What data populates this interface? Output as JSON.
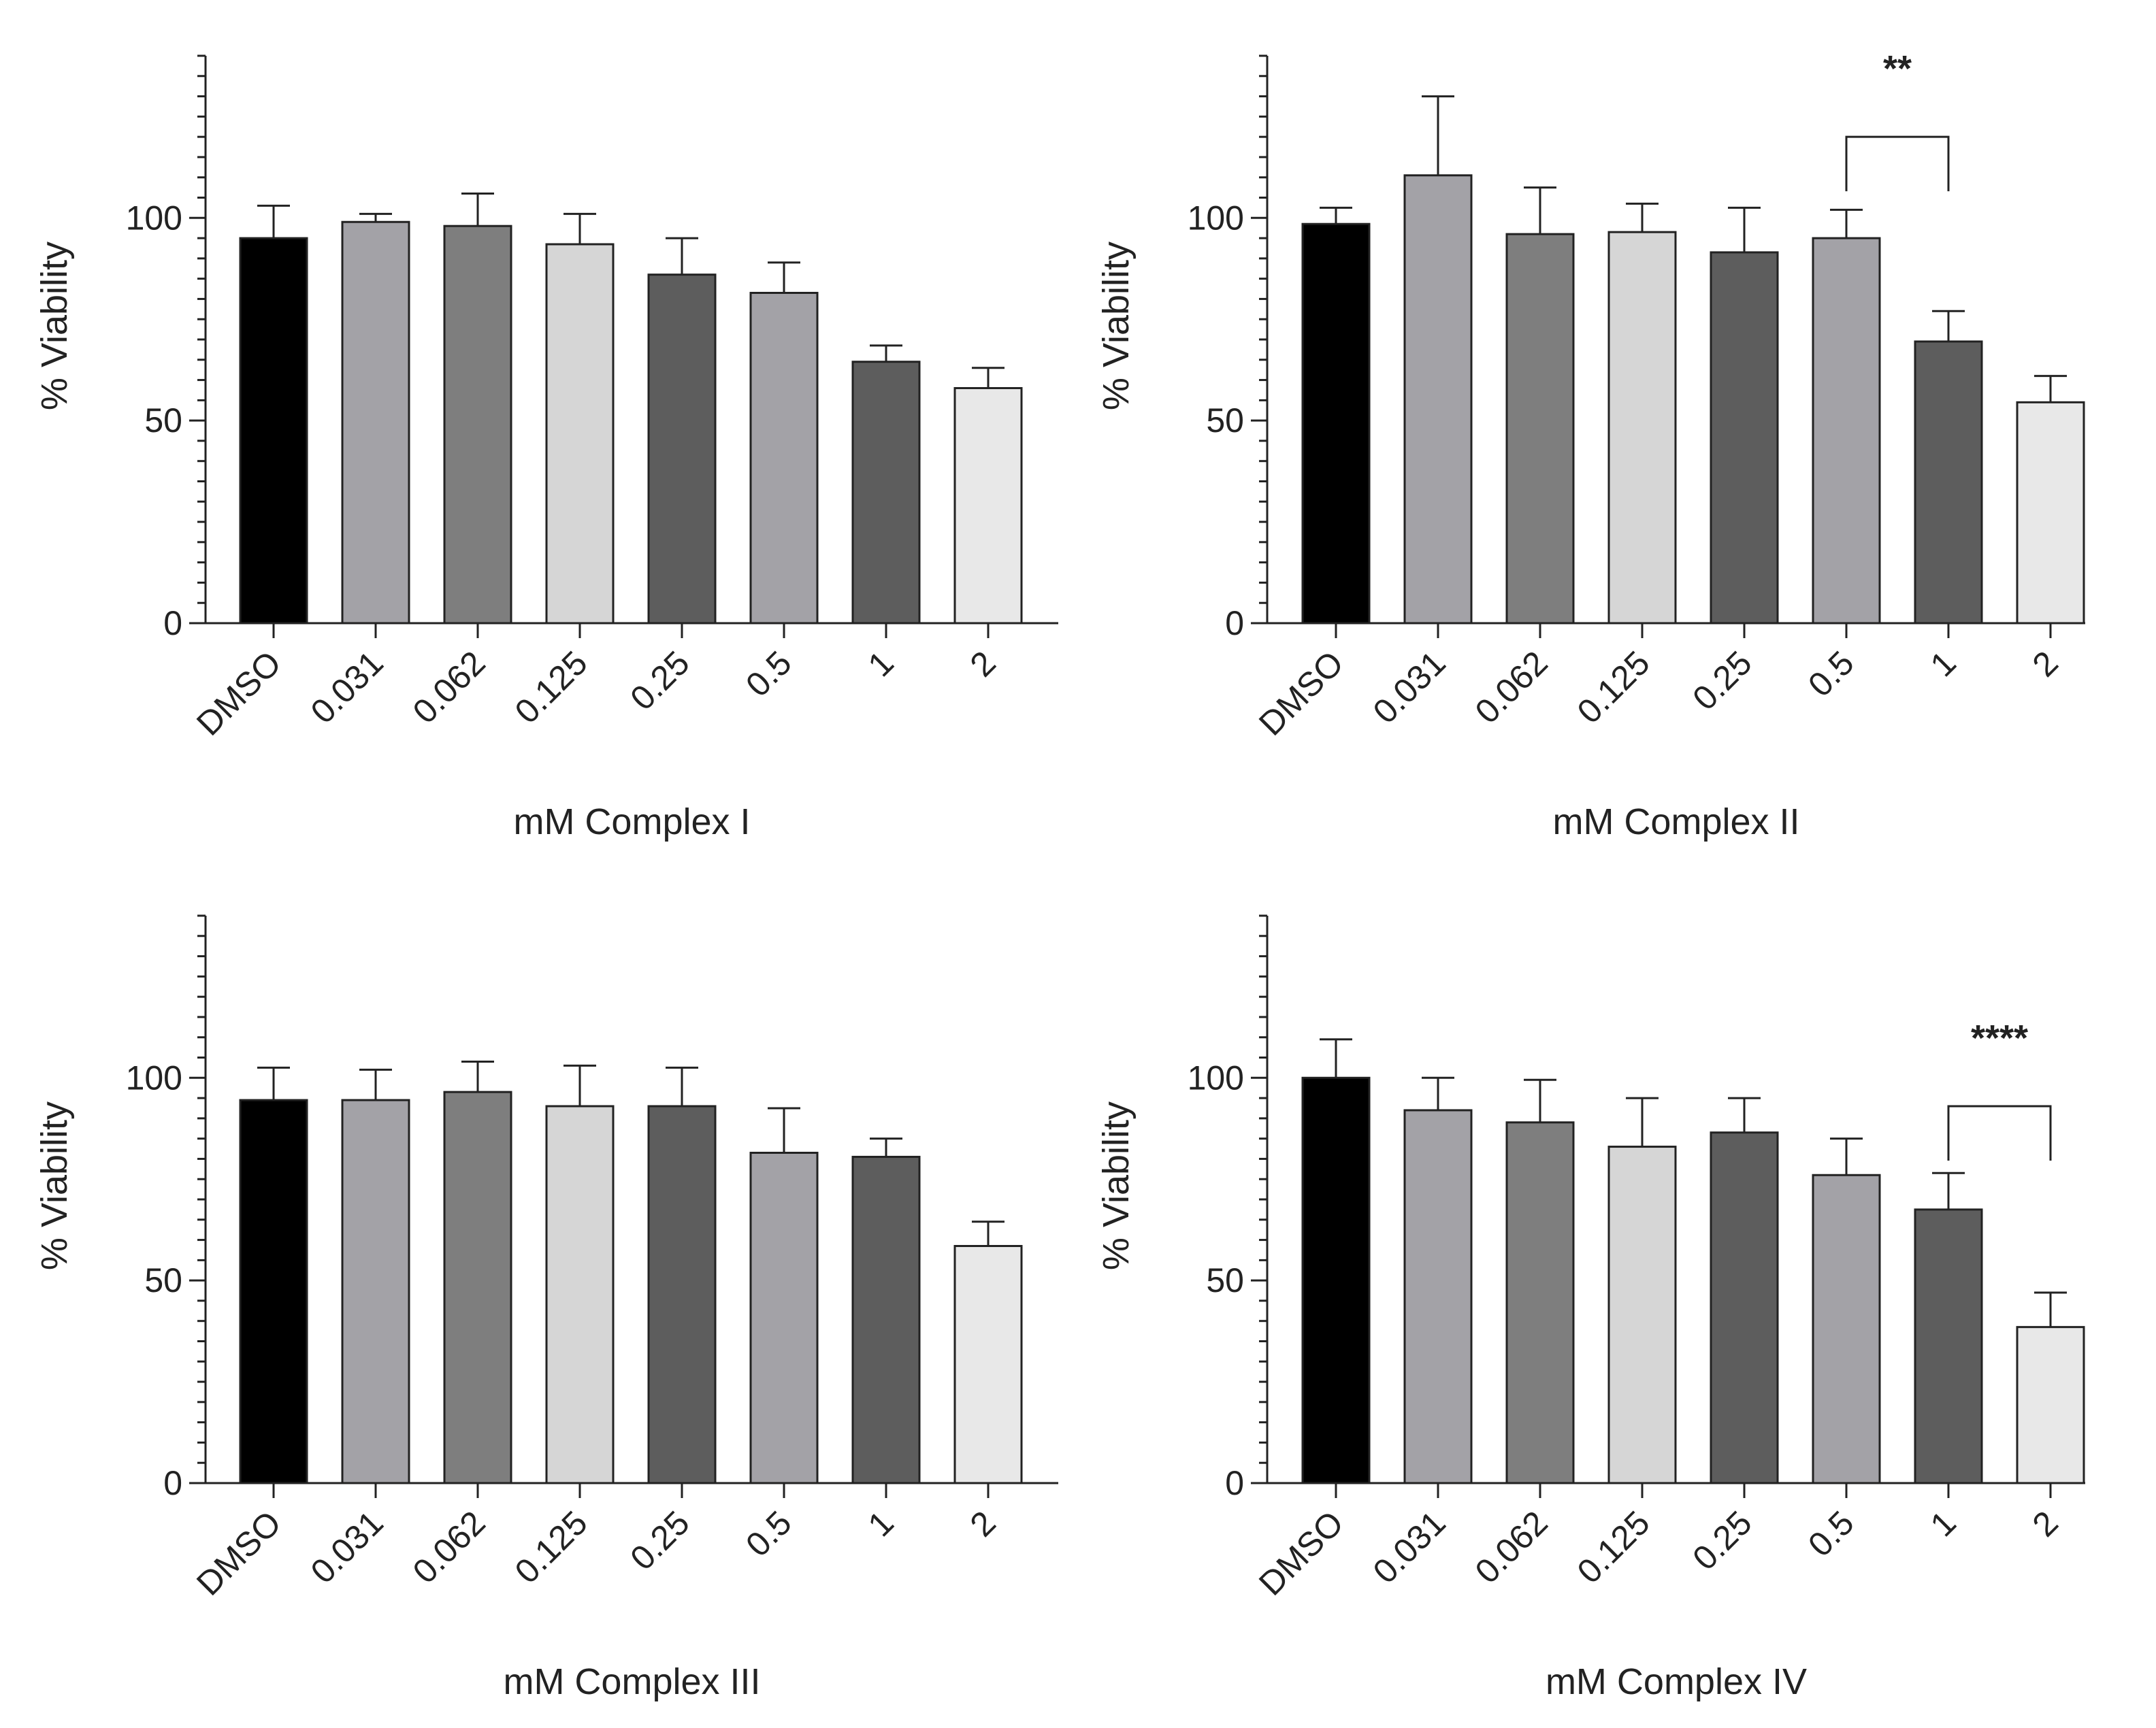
{
  "chart_data": [
    {
      "type": "bar",
      "title": "",
      "xlabel": "mM Complex I",
      "ylabel": "% Viability",
      "ylim": [
        0,
        140
      ],
      "yticks": [
        0,
        50,
        100
      ],
      "categories": [
        "DMSO",
        "0.031",
        "0.062",
        "0.125",
        "0.25",
        "0.5",
        "1",
        "2"
      ],
      "values": [
        95,
        99,
        98,
        93.5,
        86,
        81.5,
        64.5,
        58
      ],
      "errors": [
        8,
        2,
        8,
        7.5,
        9,
        7.5,
        4,
        5
      ],
      "significance": []
    },
    {
      "type": "bar",
      "title": "",
      "xlabel": "mM Complex II",
      "ylabel": "% Viability",
      "ylim": [
        0,
        140
      ],
      "yticks": [
        0,
        50,
        100
      ],
      "categories": [
        "DMSO",
        "0.031",
        "0.062",
        "0.125",
        "0.25",
        "0.5",
        "1",
        "2"
      ],
      "values": [
        98.5,
        110.5,
        96,
        96.5,
        91.5,
        95,
        69.5,
        54.5
      ],
      "errors": [
        4,
        19.5,
        11.5,
        7,
        11,
        7,
        7.5,
        6.5
      ],
      "significance": [
        {
          "from": 5,
          "to": 6,
          "label": "**",
          "y": 120
        }
      ]
    },
    {
      "type": "bar",
      "title": "",
      "xlabel": "mM Complex III",
      "ylabel": "% Viability",
      "ylim": [
        0,
        140
      ],
      "yticks": [
        0,
        50,
        100
      ],
      "categories": [
        "DMSO",
        "0.031",
        "0.062",
        "0.125",
        "0.25",
        "0.5",
        "1",
        "2"
      ],
      "values": [
        94.5,
        94.5,
        96.5,
        93,
        93,
        81.5,
        80.5,
        58.5
      ],
      "errors": [
        8,
        7.5,
        7.5,
        10,
        9.5,
        11,
        4.5,
        6
      ],
      "significance": []
    },
    {
      "type": "bar",
      "title": "",
      "xlabel": "mM Complex IV",
      "ylabel": "% Viability",
      "ylim": [
        0,
        140
      ],
      "yticks": [
        0,
        50,
        100
      ],
      "categories": [
        "DMSO",
        "0.031",
        "0.062",
        "0.125",
        "0.25",
        "0.5",
        "1",
        "2"
      ],
      "values": [
        100,
        92,
        89,
        83,
        86.5,
        76,
        67.5,
        38.5
      ],
      "errors": [
        9.5,
        8,
        10.5,
        12,
        8.5,
        9,
        9,
        8.5
      ],
      "significance": [
        {
          "from": 6,
          "to": 7,
          "label": "****",
          "y": 93
        }
      ]
    }
  ],
  "colors": {
    "bars": [
      "#000000",
      "#a3a2a7",
      "#7e7e7e",
      "#d6d6d6",
      "#5d5d5d",
      "#a3a2a7",
      "#5d5d5d",
      "#e8e8e8"
    ],
    "axis": "#222222"
  }
}
